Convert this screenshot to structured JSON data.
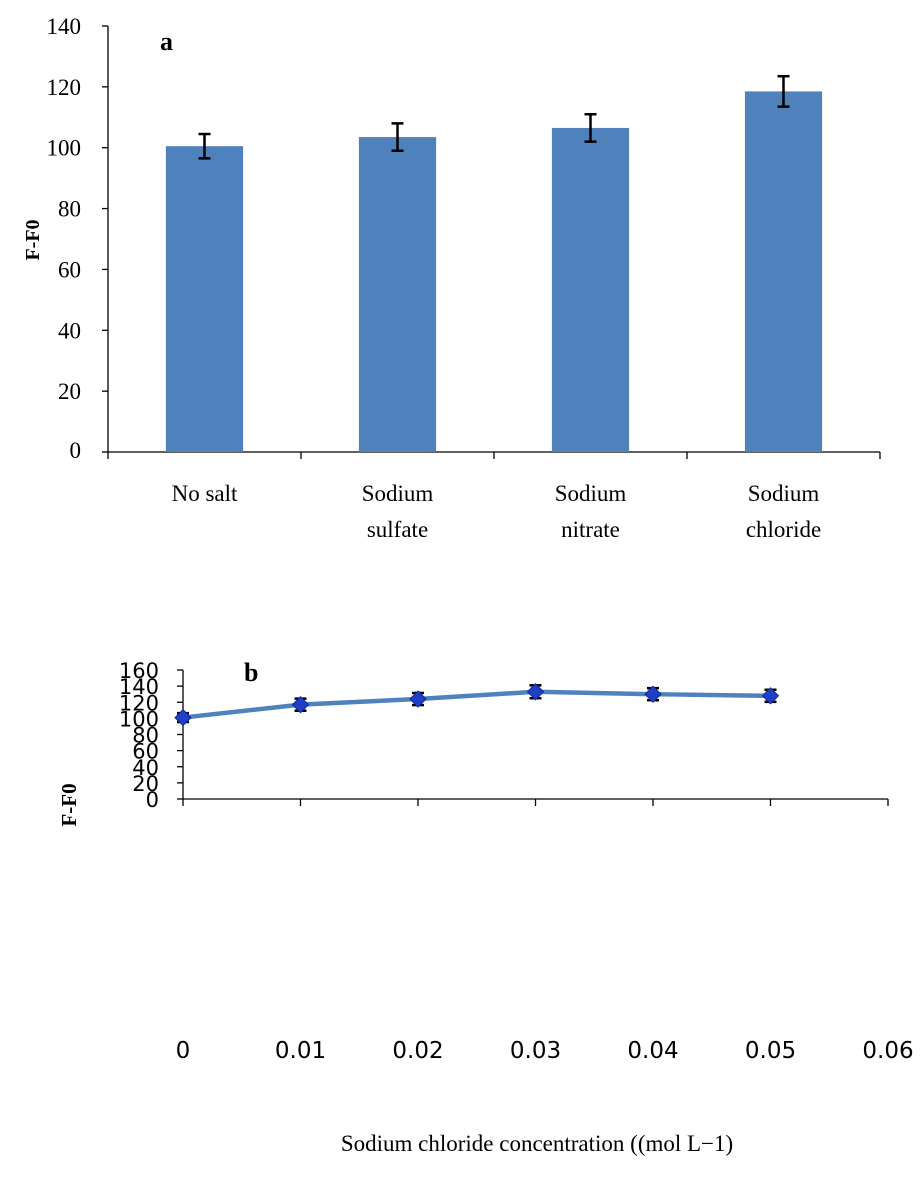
{
  "colors": {
    "bar": "#4f81bd",
    "line": "#4f81bd",
    "marker": "#1f3fc4",
    "marker_edge": "#10279a",
    "error": "#000000",
    "axis": "#000000"
  },
  "chart_data": [
    {
      "type": "bar",
      "panel_label": "a",
      "categories": [
        [
          "No salt"
        ],
        [
          "Sodium",
          "sulfate"
        ],
        [
          "Sodium",
          "nitrate"
        ],
        [
          "Sodium",
          "chloride"
        ]
      ],
      "values": [
        100.5,
        103.5,
        106.5,
        118.5
      ],
      "errors": [
        4,
        4.5,
        4.5,
        5
      ],
      "ylabel": "F-F0",
      "xlabel": "",
      "ylim": [
        0,
        140
      ],
      "yticks": [
        0,
        20,
        40,
        60,
        80,
        100,
        120,
        140
      ],
      "grid": false,
      "legend": "none"
    },
    {
      "type": "line",
      "panel_label": "b",
      "x": [
        0,
        0.01,
        0.02,
        0.03,
        0.04,
        0.05
      ],
      "y": [
        101,
        117,
        124,
        133,
        130,
        128
      ],
      "errors": [
        5.5,
        7.5,
        7.5,
        8,
        7.5,
        7.5
      ],
      "ylabel": "F-F0",
      "xlabel": "Sodium chloride concentration ((mol L−1)",
      "xlim": [
        0,
        0.06
      ],
      "xticks": [
        "0",
        "0.01",
        "0.02",
        "0.03",
        "0.04",
        "0.05",
        "0.06"
      ],
      "ylim": [
        0,
        160
      ],
      "yticks": [
        0,
        20,
        40,
        60,
        80,
        100,
        120,
        140,
        160
      ],
      "grid": false,
      "legend": "none"
    }
  ]
}
